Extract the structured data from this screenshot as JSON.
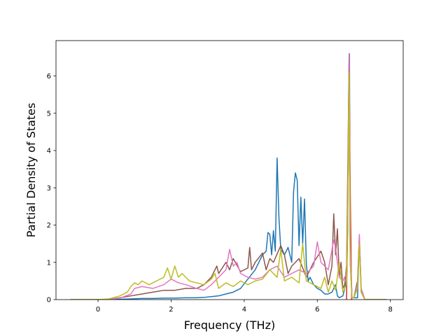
{
  "chart_data": {
    "type": "line",
    "title": "",
    "xlabel": "Frequency (THz)",
    "ylabel": "Partial Density of States",
    "xlim": [
      -1.15,
      8.35
    ],
    "ylim": [
      0,
      6.95
    ],
    "xticks": [
      0,
      2,
      4,
      6,
      8
    ],
    "yticks": [
      0,
      1,
      2,
      3,
      4,
      5,
      6
    ],
    "grid": false,
    "legend": "none",
    "series": [
      {
        "color": "#1f77b4",
        "x": [
          -0.75,
          0.0,
          0.3,
          0.6,
          0.9,
          1.2,
          1.5,
          1.8,
          2.1,
          2.4,
          2.7,
          2.9,
          3.1,
          3.3,
          3.5,
          3.7,
          3.9,
          4.1,
          4.3,
          4.5,
          4.6,
          4.65,
          4.7,
          4.75,
          4.8,
          4.85,
          4.9,
          4.95,
          5.0,
          5.1,
          5.2,
          5.3,
          5.35,
          5.4,
          5.45,
          5.5,
          5.55,
          5.6,
          5.65,
          5.7,
          5.75,
          5.8,
          5.9,
          6.0,
          6.1,
          6.2,
          6.3,
          6.4,
          6.5,
          6.55,
          6.6,
          6.7,
          6.75,
          6.8,
          6.83,
          6.86,
          6.88,
          6.9,
          6.95,
          7.0,
          7.1,
          7.15,
          7.2,
          7.3,
          7.6,
          7.9
        ],
        "y": [
          0.0,
          0.0,
          0.0,
          0.01,
          0.02,
          0.03,
          0.03,
          0.04,
          0.04,
          0.05,
          0.05,
          0.06,
          0.08,
          0.1,
          0.15,
          0.2,
          0.3,
          0.55,
          0.8,
          1.2,
          1.3,
          1.8,
          1.75,
          1.2,
          1.85,
          1.3,
          3.8,
          2.2,
          1.35,
          1.2,
          1.4,
          1.0,
          2.9,
          3.4,
          3.2,
          1.45,
          2.75,
          1.5,
          2.7,
          0.95,
          0.5,
          0.6,
          0.4,
          0.3,
          0.25,
          0.15,
          0.15,
          0.2,
          0.4,
          0.1,
          0.05,
          0.1,
          0.3,
          0.5,
          1.8,
          5.8,
          6.6,
          1.0,
          0.05,
          0.05,
          0.05,
          1.6,
          0.2,
          0.0,
          0.0,
          0.0
        ]
      },
      {
        "color": "#d62728",
        "x": [
          6.8,
          6.84,
          6.87,
          6.9,
          6.94
        ],
        "y": [
          0.0,
          3.0,
          6.5,
          3.0,
          0.0
        ]
      },
      {
        "color": "#8c564b",
        "x": [
          -0.75,
          0.0,
          0.3,
          0.6,
          0.9,
          1.2,
          1.5,
          1.8,
          2.1,
          2.4,
          2.7,
          2.9,
          3.1,
          3.25,
          3.3,
          3.5,
          3.6,
          3.7,
          3.9,
          4.1,
          4.15,
          4.2,
          4.3,
          4.5,
          4.6,
          4.7,
          4.8,
          5.0,
          5.1,
          5.2,
          5.3,
          5.5,
          5.7,
          5.9,
          6.1,
          6.2,
          6.3,
          6.4,
          6.45,
          6.5,
          6.55,
          6.6,
          6.65,
          6.7,
          6.75,
          6.8,
          6.84,
          6.87,
          6.9,
          6.95,
          7.0,
          7.1,
          7.15,
          7.2,
          7.3,
          7.6,
          7.9
        ],
        "y": [
          0.0,
          0.0,
          0.01,
          0.05,
          0.1,
          0.15,
          0.2,
          0.25,
          0.25,
          0.3,
          0.3,
          0.4,
          0.6,
          0.9,
          0.7,
          1.0,
          0.8,
          1.1,
          0.75,
          0.85,
          1.4,
          0.8,
          1.0,
          1.25,
          0.8,
          1.1,
          1.0,
          1.45,
          1.2,
          0.7,
          0.9,
          1.1,
          0.6,
          1.0,
          1.3,
          1.0,
          0.4,
          0.9,
          2.3,
          1.2,
          1.9,
          0.6,
          1.0,
          0.3,
          0.4,
          0.9,
          4.0,
          6.5,
          1.2,
          0.05,
          0.05,
          0.5,
          1.7,
          0.3,
          0.0,
          0.0,
          0.0
        ]
      },
      {
        "color": "#e377c2",
        "x": [
          -0.75,
          0.0,
          0.3,
          0.6,
          0.9,
          1.0,
          1.2,
          1.5,
          1.8,
          2.0,
          2.2,
          2.4,
          2.7,
          2.9,
          3.1,
          3.3,
          3.5,
          3.6,
          3.7,
          3.8,
          3.9,
          4.1,
          4.3,
          4.5,
          4.7,
          4.9,
          5.1,
          5.3,
          5.5,
          5.7,
          5.9,
          6.0,
          6.1,
          6.3,
          6.45,
          6.5,
          6.6,
          6.7,
          6.8,
          6.84,
          6.87,
          6.9,
          6.95,
          7.0,
          7.1,
          7.15,
          7.2,
          7.3,
          7.6,
          7.9
        ],
        "y": [
          0.0,
          0.0,
          0.01,
          0.04,
          0.15,
          0.3,
          0.35,
          0.3,
          0.4,
          0.55,
          0.45,
          0.4,
          0.3,
          0.25,
          0.4,
          0.6,
          0.8,
          1.35,
          0.9,
          1.0,
          0.7,
          0.6,
          0.55,
          0.6,
          0.8,
          0.9,
          0.6,
          0.7,
          0.8,
          0.7,
          0.9,
          1.55,
          1.0,
          0.8,
          1.6,
          1.4,
          0.6,
          0.5,
          0.7,
          3.5,
          6.6,
          1.5,
          0.05,
          0.05,
          0.4,
          1.75,
          0.3,
          0.0,
          0.0,
          0.0
        ]
      },
      {
        "color": "#bcbd22",
        "x": [
          -0.75,
          0.0,
          0.3,
          0.6,
          0.8,
          0.9,
          1.0,
          1.1,
          1.2,
          1.4,
          1.6,
          1.8,
          1.9,
          2.0,
          2.1,
          2.2,
          2.3,
          2.5,
          2.7,
          2.9,
          3.1,
          3.2,
          3.3,
          3.5,
          3.7,
          3.9,
          4.1,
          4.3,
          4.5,
          4.7,
          4.9,
          5.0,
          5.1,
          5.3,
          5.5,
          5.6,
          5.7,
          5.9,
          6.1,
          6.2,
          6.3,
          6.4,
          6.5,
          6.6,
          6.7,
          6.8,
          6.84,
          6.87,
          6.9,
          6.95,
          7.0,
          7.1,
          7.15,
          7.2,
          7.3,
          7.6,
          7.9
        ],
        "y": [
          0.0,
          0.0,
          0.02,
          0.1,
          0.2,
          0.35,
          0.45,
          0.4,
          0.5,
          0.4,
          0.5,
          0.6,
          0.85,
          0.55,
          0.9,
          0.6,
          0.7,
          0.5,
          0.45,
          0.4,
          0.55,
          0.7,
          0.3,
          0.45,
          0.35,
          0.5,
          0.4,
          0.5,
          0.55,
          0.8,
          0.6,
          1.35,
          0.5,
          0.6,
          0.45,
          1.5,
          0.5,
          0.4,
          0.3,
          0.6,
          0.2,
          0.5,
          0.25,
          1.0,
          0.2,
          0.4,
          3.0,
          6.1,
          1.0,
          0.05,
          0.05,
          0.3,
          1.5,
          0.2,
          0.0,
          0.0,
          0.0
        ]
      }
    ]
  }
}
